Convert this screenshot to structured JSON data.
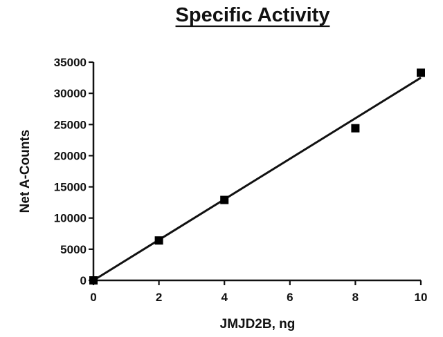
{
  "chart_data": {
    "type": "scatter",
    "title": "Specific Activity",
    "xlabel": "JMJD2B, ng",
    "ylabel": "Net A-Counts",
    "xlim": [
      0,
      10
    ],
    "ylim": [
      0,
      35000
    ],
    "xticks": [
      "0",
      "2",
      "4",
      "6",
      "8",
      "10"
    ],
    "yticks": [
      "0",
      "5000",
      "10000",
      "15000",
      "20000",
      "25000",
      "30000",
      "35000"
    ],
    "grid": false,
    "legend": "none",
    "series": [
      {
        "points": [
          {
            "x": 0,
            "y": 0
          },
          {
            "x": 2,
            "y": 6400
          },
          {
            "x": 4,
            "y": 12900
          },
          {
            "x": 8,
            "y": 24400
          },
          {
            "x": 10,
            "y": 33300
          }
        ],
        "marker": "square",
        "color": "#000000"
      }
    ],
    "fit_line": {
      "type": "linear",
      "x": [
        0,
        10
      ],
      "y": [
        0,
        32500
      ],
      "color": "#111111"
    }
  }
}
